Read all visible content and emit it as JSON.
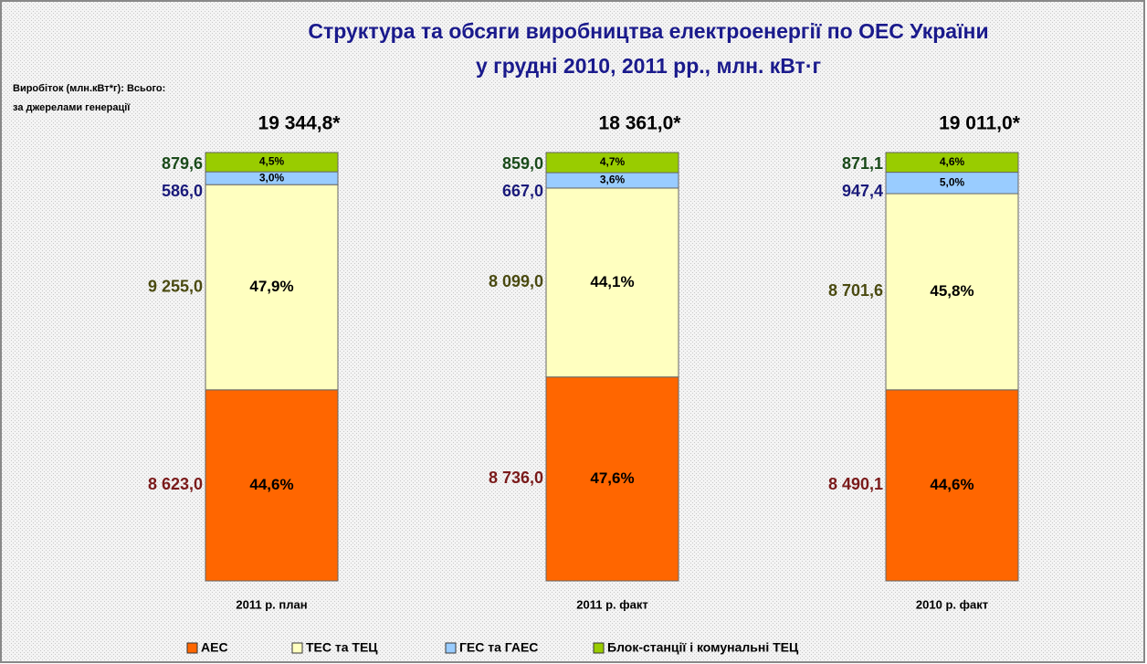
{
  "chart_data": {
    "type": "stacked_bar_100",
    "title": [
      "Структура та обсяги виробництва електроенергії по ОЕС України",
      "у грудні 2010, 2011 рр., млн. кВт·г"
    ],
    "subtitle": [
      "Виробіток (млн.кВт*г): Всього:",
      "за джерелами генерації"
    ],
    "categories": [
      "2011 р. план",
      "2011 р. факт",
      "2010 р. факт"
    ],
    "totals": [
      19344.8,
      18361.0,
      19011.0
    ],
    "total_labels": [
      "19 344,8*",
      "18 361,0*",
      "19 011,0*"
    ],
    "ylim": [
      0,
      100
    ],
    "legend": "bottom",
    "series": [
      {
        "name": "АЕС",
        "color": "#ff6600",
        "label_color": "#7a1a1a",
        "values": [
          44.6,
          47.6,
          44.6
        ],
        "value_labels": [
          "44,6%",
          "47,6%",
          "44,6%"
        ],
        "amounts": [
          8623.0,
          8736.0,
          8490.1
        ],
        "amount_labels": [
          "8 623,0",
          "8 736,0",
          "8 490,1"
        ]
      },
      {
        "name": "ТЕС та ТЕЦ",
        "color": "#ffffc0",
        "label_color": "#4a4a10",
        "values": [
          47.9,
          44.1,
          45.8
        ],
        "value_labels": [
          "47,9%",
          "44,1%",
          "45,8%"
        ],
        "amounts": [
          9255.0,
          8099.0,
          8701.6
        ],
        "amount_labels": [
          "9 255,0",
          "8 099,0",
          "8 701,6"
        ]
      },
      {
        "name": "ГЕС та ГАЕС",
        "color": "#99ccff",
        "label_color": "#1a1a7a",
        "values": [
          3.0,
          3.6,
          5.0
        ],
        "value_labels": [
          "3,0%",
          "3,6%",
          "5,0%"
        ],
        "amounts": [
          586.0,
          667.0,
          947.4
        ],
        "amount_labels": [
          "586,0",
          "667,0",
          "947,4"
        ]
      },
      {
        "name": "Блок-станції і комунальні ТЕЦ",
        "color": "#99cc00",
        "label_color": "#1a4a1a",
        "values": [
          4.5,
          4.7,
          4.6
        ],
        "value_labels": [
          "4,5%",
          "4,7%",
          "4,6%"
        ],
        "amounts": [
          879.6,
          859.0,
          871.1
        ],
        "amount_labels": [
          "879,6",
          "859,0",
          "871,1"
        ]
      }
    ]
  }
}
